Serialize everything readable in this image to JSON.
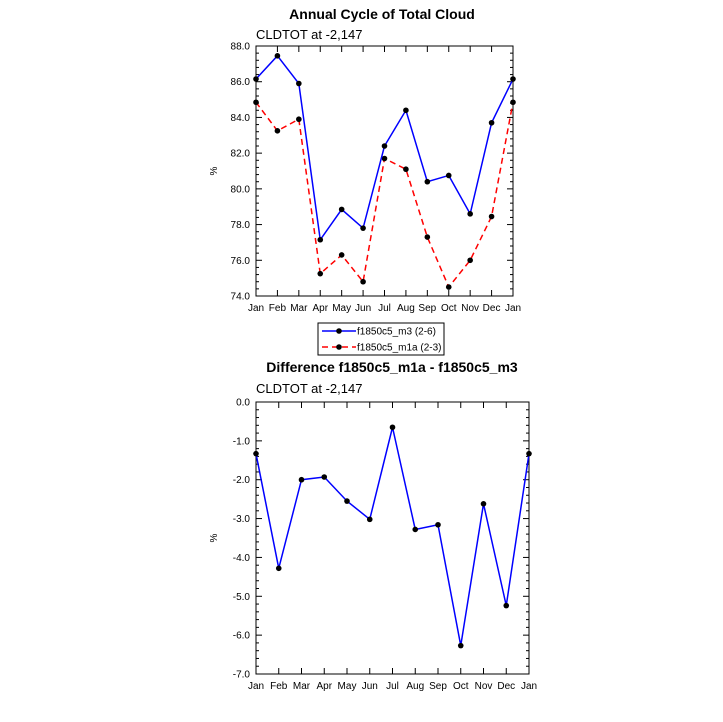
{
  "chart_data": [
    {
      "type": "line",
      "title": "Annual Cycle of Total Cloud",
      "subtitle": "CLDTOT at -2,147",
      "ylabel": "%",
      "xlabel": "",
      "categories": [
        "Jan",
        "Feb",
        "Mar",
        "Apr",
        "May",
        "Jun",
        "Jul",
        "Aug",
        "Sep",
        "Oct",
        "Nov",
        "Dec",
        "Jan"
      ],
      "ylim": [
        74.0,
        88.0
      ],
      "yticks": [
        "74.0",
        "76.0",
        "78.0",
        "80.0",
        "82.0",
        "84.0",
        "86.0",
        "88.0"
      ],
      "grid": false,
      "legend_position": "below",
      "series": [
        {
          "name": "f1850c5_m3 (2-6)",
          "color": "#0000ff",
          "dash": "solid",
          "values": [
            86.15,
            87.45,
            85.9,
            77.15,
            78.85,
            77.8,
            82.4,
            84.4,
            80.4,
            80.75,
            78.6,
            83.7,
            86.15
          ]
        },
        {
          "name": "f1850c5_m1a (2-3)",
          "color": "#ff0000",
          "dash": "dashed",
          "values": [
            84.85,
            83.25,
            83.9,
            75.25,
            76.3,
            74.8,
            81.7,
            81.1,
            77.3,
            74.5,
            76.0,
            78.45,
            84.85
          ]
        }
      ]
    },
    {
      "type": "line",
      "title": "Difference f1850c5_m1a - f1850c5_m3",
      "subtitle": "CLDTOT at -2,147",
      "ylabel": "%",
      "xlabel": "",
      "categories": [
        "Jan",
        "Feb",
        "Mar",
        "Apr",
        "May",
        "Jun",
        "Jul",
        "Aug",
        "Sep",
        "Oct",
        "Nov",
        "Dec",
        "Jan"
      ],
      "ylim": [
        -7.0,
        0.0
      ],
      "yticks": [
        "-7.0",
        "-6.0",
        "-5.0",
        "-4.0",
        "-3.0",
        "-2.0",
        "-1.0",
        "0.0"
      ],
      "grid": false,
      "series": [
        {
          "color": "#0000ff",
          "dash": "solid",
          "values": [
            -1.33,
            -4.28,
            -2.0,
            -1.93,
            -2.55,
            -3.02,
            -0.65,
            -3.28,
            -3.16,
            -6.27,
            -2.62,
            -5.24,
            -1.33
          ]
        }
      ]
    }
  ]
}
